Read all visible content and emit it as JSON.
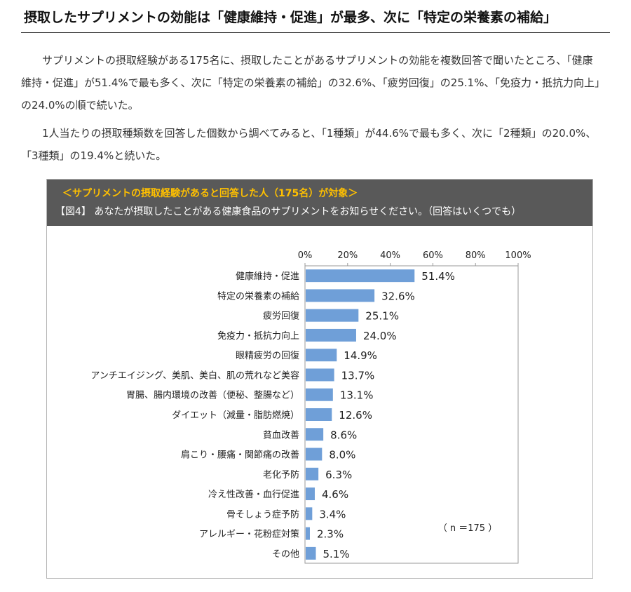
{
  "article": {
    "headline": "摂取したサプリメントの効能は「健康維持・促進」が最多、次に「特定の栄養素の補給」",
    "paragraph1": "サプリメントの摂取経験がある175名に、摂取したことがあるサプリメントの効能を複数回答で聞いたところ、「健康維持・促進」が51.4%で最も多く、次に「特定の栄養素の補給」の32.6%、「疲労回復」の25.1%、「免疫力・抵抗力向上」の24.0%の順で続いた。",
    "paragraph2": "1人当たりの摂取種類数を回答した個数から調べてみると、「1種類」が44.6%で最も多く、次に「2種類」の20.0%、「3種類」の19.4%と続いた。"
  },
  "figure": {
    "target_note": "＜サプリメントの摂取経験があると回答した人（175名）が対象＞",
    "question": "【図4】 あなたが摂取したことがある健康食品のサプリメントをお知らせください。（回答はいくつでも）",
    "sample_note": "（ n ＝175 ）"
  },
  "colors": {
    "bar": "#6f9fd8",
    "header_bg": "#595959",
    "target_text": "#ffc000"
  },
  "chart_data": {
    "type": "bar",
    "orientation": "horizontal",
    "categories": [
      "健康維持・促進",
      "特定の栄養素の補給",
      "疲労回復",
      "免疫力・抵抗力向上",
      "眼精疲労の回復",
      "アンチエイジング、美肌、美白、肌の荒れなど美容",
      "胃腸、腸内環境の改善（便秘、整腸など）",
      "ダイエット（減量・脂肪燃焼）",
      "貧血改善",
      "肩こり・腰痛・関節痛の改善",
      "老化予防",
      "冷え性改善・血行促進",
      "骨そしょう症予防",
      "アレルギー・花粉症対策",
      "その他"
    ],
    "values": [
      51.4,
      32.6,
      25.1,
      24.0,
      14.9,
      13.7,
      13.1,
      12.6,
      8.6,
      8.0,
      6.3,
      4.6,
      3.4,
      2.3,
      5.1
    ],
    "value_labels": [
      "51.4%",
      "32.6%",
      "25.1%",
      "24.0%",
      "14.9%",
      "13.7%",
      "13.1%",
      "12.6%",
      "8.6%",
      "8.0%",
      "6.3%",
      "4.6%",
      "3.4%",
      "2.3%",
      "5.1%"
    ],
    "xlim": [
      0,
      100
    ],
    "xticks": [
      "0%",
      "20%",
      "40%",
      "60%",
      "80%",
      "100%"
    ],
    "grid": false,
    "legend": "none"
  }
}
